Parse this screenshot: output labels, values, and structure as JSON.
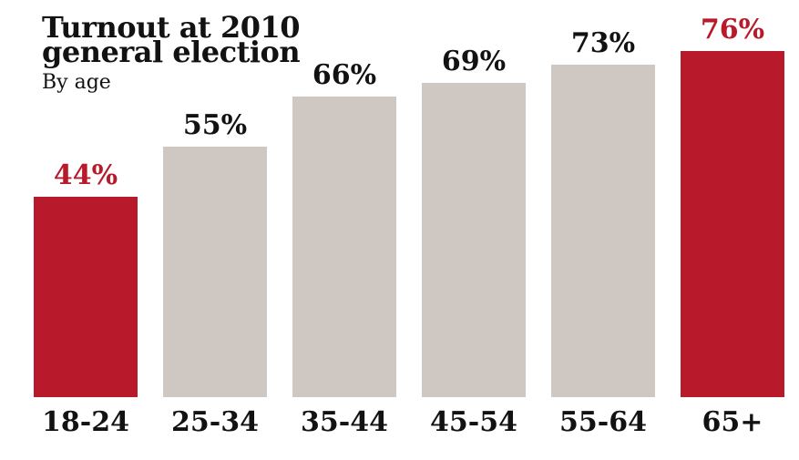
{
  "header": {
    "title_line1": "Turnout at 2010",
    "title_line2": "general election",
    "subtitle": "By age"
  },
  "colors": {
    "highlight": "#b81a2b",
    "neutral": "#cfc8c2",
    "text": "#121212",
    "background": "#ffffff"
  },
  "chart_data": {
    "type": "bar",
    "title": "Turnout at 2010 general election",
    "subtitle": "By age",
    "categories": [
      "18-24",
      "25-34",
      "35-44",
      "45-54",
      "55-64",
      "65+"
    ],
    "values": [
      44,
      55,
      66,
      69,
      73,
      76
    ],
    "value_labels": [
      "44%",
      "55%",
      "66%",
      "69%",
      "73%",
      "76%"
    ],
    "highlighted": [
      true,
      false,
      false,
      false,
      false,
      true
    ],
    "unit": "%",
    "ylim": [
      0,
      100
    ],
    "grid": false,
    "legend": false,
    "axes_drawn": false
  }
}
